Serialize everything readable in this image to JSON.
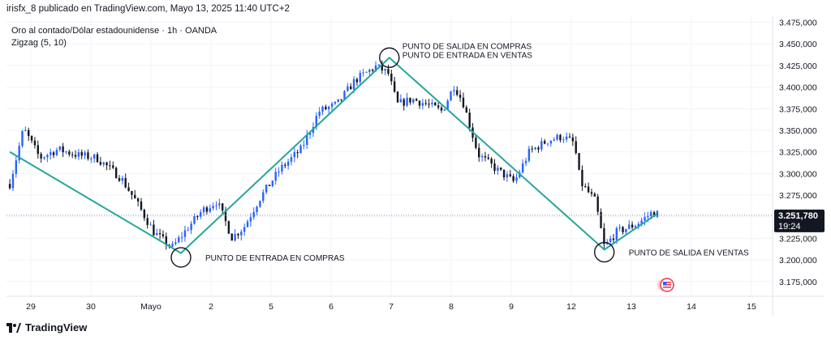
{
  "header": {
    "publisher_line": "irisfx_8 publicado en TradingView.com, Mayo 13, 2025 11:40 UTC+2"
  },
  "legend": {
    "symbol_line": "Oro al contado/Dólar estadounidense · 1h · OANDA",
    "indicator_line": "Zigzag (5, 10)"
  },
  "footer": {
    "brand": "TradingView",
    "logo_icon": "tradingview-logo-icon"
  },
  "price_badge": {
    "value": "3.251,780",
    "countdown": "19:24",
    "color": "#131722"
  },
  "colors": {
    "up_candle": "#2962ff",
    "down_candle": "#131722",
    "zigzag": "#26a69a",
    "grid": "#f0f3fa",
    "axis_text": "#131722"
  },
  "chart_data": {
    "type": "line",
    "title": "Oro al contado/Dólar estadounidense · 1h · OANDA",
    "price_scale_ticks": [
      "3.475,000",
      "3.450,000",
      "3.425,000",
      "3.400,000",
      "3.375,000",
      "3.350,000",
      "3.325,000",
      "3.300,000",
      "3.275,000",
      "3.250,000",
      "3.225,000",
      "3.200,000",
      "3.175,000"
    ],
    "price_scale_values": [
      3475,
      3450,
      3425,
      3400,
      3375,
      3350,
      3325,
      3300,
      3275,
      3250,
      3225,
      3200,
      3175
    ],
    "time_ticks": [
      "29",
      "30",
      "Mayo",
      "2",
      "5",
      "6",
      "7",
      "8",
      "9",
      "12",
      "13",
      "14",
      "15"
    ],
    "time_tick_positions": [
      0,
      1,
      2,
      3,
      4,
      5,
      6,
      7,
      8,
      9,
      10,
      11,
      12
    ],
    "ylim": [
      3158,
      3482
    ],
    "xlim": [
      -0.35,
      12.1
    ],
    "grid": true,
    "candles": {
      "description": "Precio de oro al contado, velas horarias (aprox.)",
      "trend_points": [
        [
          -0.35,
          3288
        ],
        [
          -0.12,
          3352
        ],
        [
          0.15,
          3318
        ],
        [
          0.45,
          3328
        ],
        [
          0.8,
          3321
        ],
        [
          1.1,
          3318
        ],
        [
          1.5,
          3295
        ],
        [
          1.75,
          3268
        ],
        [
          2.05,
          3232
        ],
        [
          2.35,
          3214
        ],
        [
          2.6,
          3236
        ],
        [
          2.85,
          3257
        ],
        [
          3.1,
          3268
        ],
        [
          3.35,
          3226
        ],
        [
          3.55,
          3238
        ],
        [
          3.8,
          3270
        ],
        [
          4.15,
          3305
        ],
        [
          4.5,
          3328
        ],
        [
          4.8,
          3372
        ],
        [
          5.1,
          3380
        ],
        [
          5.4,
          3408
        ],
        [
          5.75,
          3424
        ],
        [
          5.95,
          3416
        ],
        [
          6.1,
          3380
        ],
        [
          6.35,
          3386
        ],
        [
          6.6,
          3380
        ],
        [
          6.85,
          3372
        ],
        [
          7.05,
          3402
        ],
        [
          7.2,
          3382
        ],
        [
          7.45,
          3322
        ],
        [
          7.75,
          3305
        ],
        [
          8.05,
          3290
        ],
        [
          8.3,
          3325
        ],
        [
          8.6,
          3338
        ],
        [
          8.85,
          3343
        ],
        [
          9.05,
          3335
        ],
        [
          9.15,
          3290
        ],
        [
          9.4,
          3268
        ],
        [
          9.55,
          3215
        ],
        [
          9.75,
          3232
        ],
        [
          10.1,
          3242
        ],
        [
          10.35,
          3255
        ],
        [
          10.45,
          3253
        ]
      ]
    },
    "zigzag": {
      "name": "Zigzag (5, 10)",
      "x": [
        -0.35,
        2.5,
        5.97,
        9.55,
        10.42
      ],
      "y": [
        3325,
        3208,
        3434,
        3212,
        3253
      ]
    },
    "annotations": [
      {
        "text": "PUNTO DE SALIDA EN COMPRAS",
        "x": 5.97,
        "y": 3434,
        "label_position": "right-top"
      },
      {
        "text": "PUNTO DE ENTRADA EN VENTAS",
        "x": 5.97,
        "y": 3434,
        "label_position": "right-top-second"
      },
      {
        "text": "PUNTO DE ENTRADA EN COMPRAS",
        "x": 2.5,
        "y": 3203,
        "label_position": "right"
      },
      {
        "text": "PUNTO DE SALIDA EN VENTAS",
        "x": 9.55,
        "y": 3209,
        "label_position": "right"
      }
    ],
    "last_price": 3251.78
  }
}
